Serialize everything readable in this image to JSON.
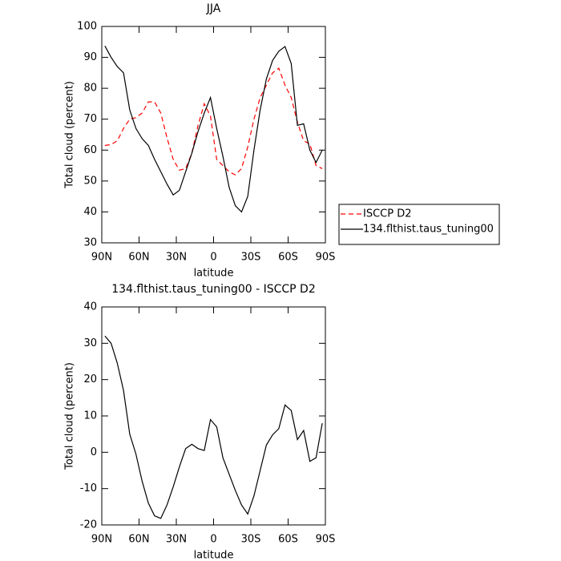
{
  "chart_data": [
    {
      "type": "line",
      "title": "JJA",
      "xlabel": "latitude",
      "ylabel": "Total cloud (percent)",
      "x": [
        87.5,
        82.5,
        77.5,
        72.5,
        67.5,
        62.5,
        57.5,
        52.5,
        47.5,
        42.5,
        37.5,
        32.5,
        27.5,
        22.5,
        17.5,
        12.5,
        7.5,
        2.5,
        -2.5,
        -7.5,
        -12.5,
        -17.5,
        -22.5,
        -27.5,
        -32.5,
        -37.5,
        -42.5,
        -47.5,
        -52.5,
        -57.5,
        -62.5,
        -67.5,
        -72.5,
        -77.5,
        -82.5,
        -87.5
      ],
      "series": [
        {
          "name": "ISCCP D2",
          "color": "#ff0000",
          "dash": "dashed",
          "values": [
            61.5,
            61.8,
            63,
            67,
            70,
            70.5,
            72,
            75.6,
            75.6,
            72,
            64,
            57,
            53.5,
            54,
            59,
            68,
            75,
            71,
            57,
            55,
            53,
            52,
            54,
            61,
            70,
            77,
            81,
            85,
            86.5,
            81,
            77,
            69,
            63,
            62,
            55,
            54
          ]
        },
        {
          "name": "134.flthist.taus_tuning00",
          "color": "#000000",
          "dash": "solid",
          "values": [
            93.7,
            90,
            87,
            85,
            73,
            67,
            63.7,
            61.5,
            57,
            53,
            49,
            45.5,
            47,
            53,
            59,
            66,
            72,
            77,
            67,
            58,
            48,
            42,
            40,
            45,
            60,
            73,
            83,
            89,
            92,
            93.5,
            88,
            68,
            68.5,
            60,
            56,
            60
          ]
        }
      ],
      "xlim": [
        90,
        -90
      ],
      "xticks": [
        {
          "value": 90,
          "label": "90N"
        },
        {
          "value": 60,
          "label": "60N"
        },
        {
          "value": 30,
          "label": "30N"
        },
        0,
        {
          "value": -30,
          "label": "30S"
        },
        {
          "value": -60,
          "label": "60S"
        },
        {
          "value": -90,
          "label": "90S"
        }
      ],
      "ylim": [
        30,
        100
      ],
      "yticks": [
        30,
        40,
        50,
        60,
        70,
        80,
        90,
        100
      ],
      "legend": "right"
    },
    {
      "type": "line",
      "title": "134.flthist.taus_tuning00 - ISCCP D2",
      "xlabel": "latitude",
      "ylabel": "Total cloud (percent)",
      "x": [
        87.5,
        82.5,
        77.5,
        72.5,
        67.5,
        62.5,
        57.5,
        52.5,
        47.5,
        42.5,
        37.5,
        32.5,
        27.5,
        22.5,
        17.5,
        12.5,
        7.5,
        2.5,
        -2.5,
        -7.5,
        -12.5,
        -17.5,
        -22.5,
        -27.5,
        -32.5,
        -37.5,
        -42.5,
        -47.5,
        -52.5,
        -57.5,
        -62.5,
        -67.5,
        -72.5,
        -77.5,
        -82.5,
        -87.5
      ],
      "series": [
        {
          "color": "#000000",
          "dash": "solid",
          "values": [
            32,
            30,
            24.5,
            17,
            5,
            -0.5,
            -8,
            -14,
            -17.5,
            -18.2,
            -14.5,
            -9.5,
            -4,
            1,
            2.2,
            1,
            0.5,
            9,
            7,
            -1.5,
            -6,
            -10.5,
            -14.5,
            -17,
            -12,
            -5,
            2,
            4.8,
            6.5,
            13,
            11.5,
            3.5,
            6,
            -2.5,
            -1.5,
            8
          ]
        }
      ],
      "xlim": [
        90,
        -90
      ],
      "xticks": [
        {
          "value": 90,
          "label": "90N"
        },
        {
          "value": 60,
          "label": "60N"
        },
        {
          "value": 30,
          "label": "30N"
        },
        0,
        {
          "value": -30,
          "label": "30S"
        },
        {
          "value": -60,
          "label": "60S"
        },
        {
          "value": -90,
          "label": "90S"
        }
      ],
      "ylim": [
        -20,
        40
      ],
      "yticks": [
        -20,
        -10,
        0,
        10,
        20,
        30,
        40
      ]
    }
  ]
}
